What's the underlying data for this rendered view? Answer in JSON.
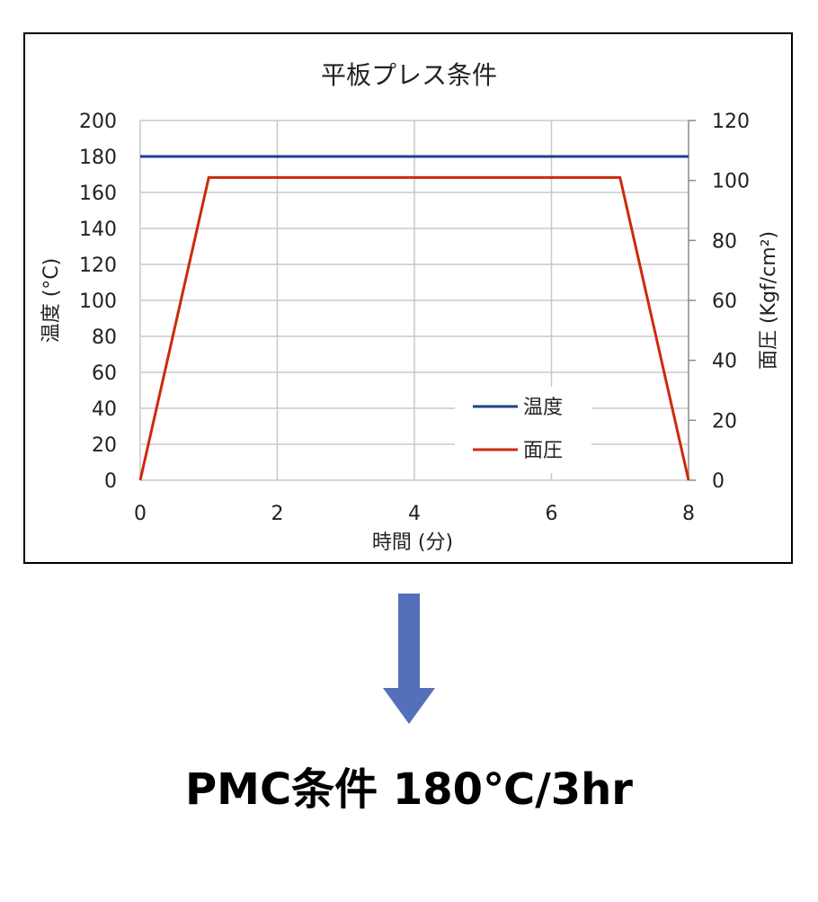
{
  "chart_data": {
    "type": "line",
    "title": "平板プレス条件",
    "xlabel": "時間 (分)",
    "ylabel_left": "温度 (°C)",
    "ylabel_right": "面圧 (Kgf/cm²)",
    "xlim": [
      0,
      8
    ],
    "ylim_left": [
      0,
      200
    ],
    "ylim_right": [
      0,
      120
    ],
    "x_ticks": [
      "0",
      "2",
      "4",
      "6",
      "8"
    ],
    "y_left_ticks": [
      "0",
      "20",
      "40",
      "60",
      "80",
      "100",
      "120",
      "140",
      "160",
      "180",
      "200"
    ],
    "y_right_ticks": [
      "0",
      "20",
      "40",
      "60",
      "80",
      "100",
      "120"
    ],
    "grid": true,
    "legend_position": "bottom-right",
    "series": [
      {
        "name": "温度",
        "axis": "left",
        "color": "#1f3f8f",
        "points": [
          [
            0,
            180
          ],
          [
            8,
            180
          ]
        ]
      },
      {
        "name": "面圧",
        "axis": "right",
        "color": "#cc2a0a",
        "points": [
          [
            0,
            0
          ],
          [
            1,
            101
          ],
          [
            7,
            101
          ],
          [
            8,
            0
          ]
        ]
      }
    ]
  },
  "caption": "PMC条件 180℃/3hr",
  "arrow_color": "#5470b8"
}
